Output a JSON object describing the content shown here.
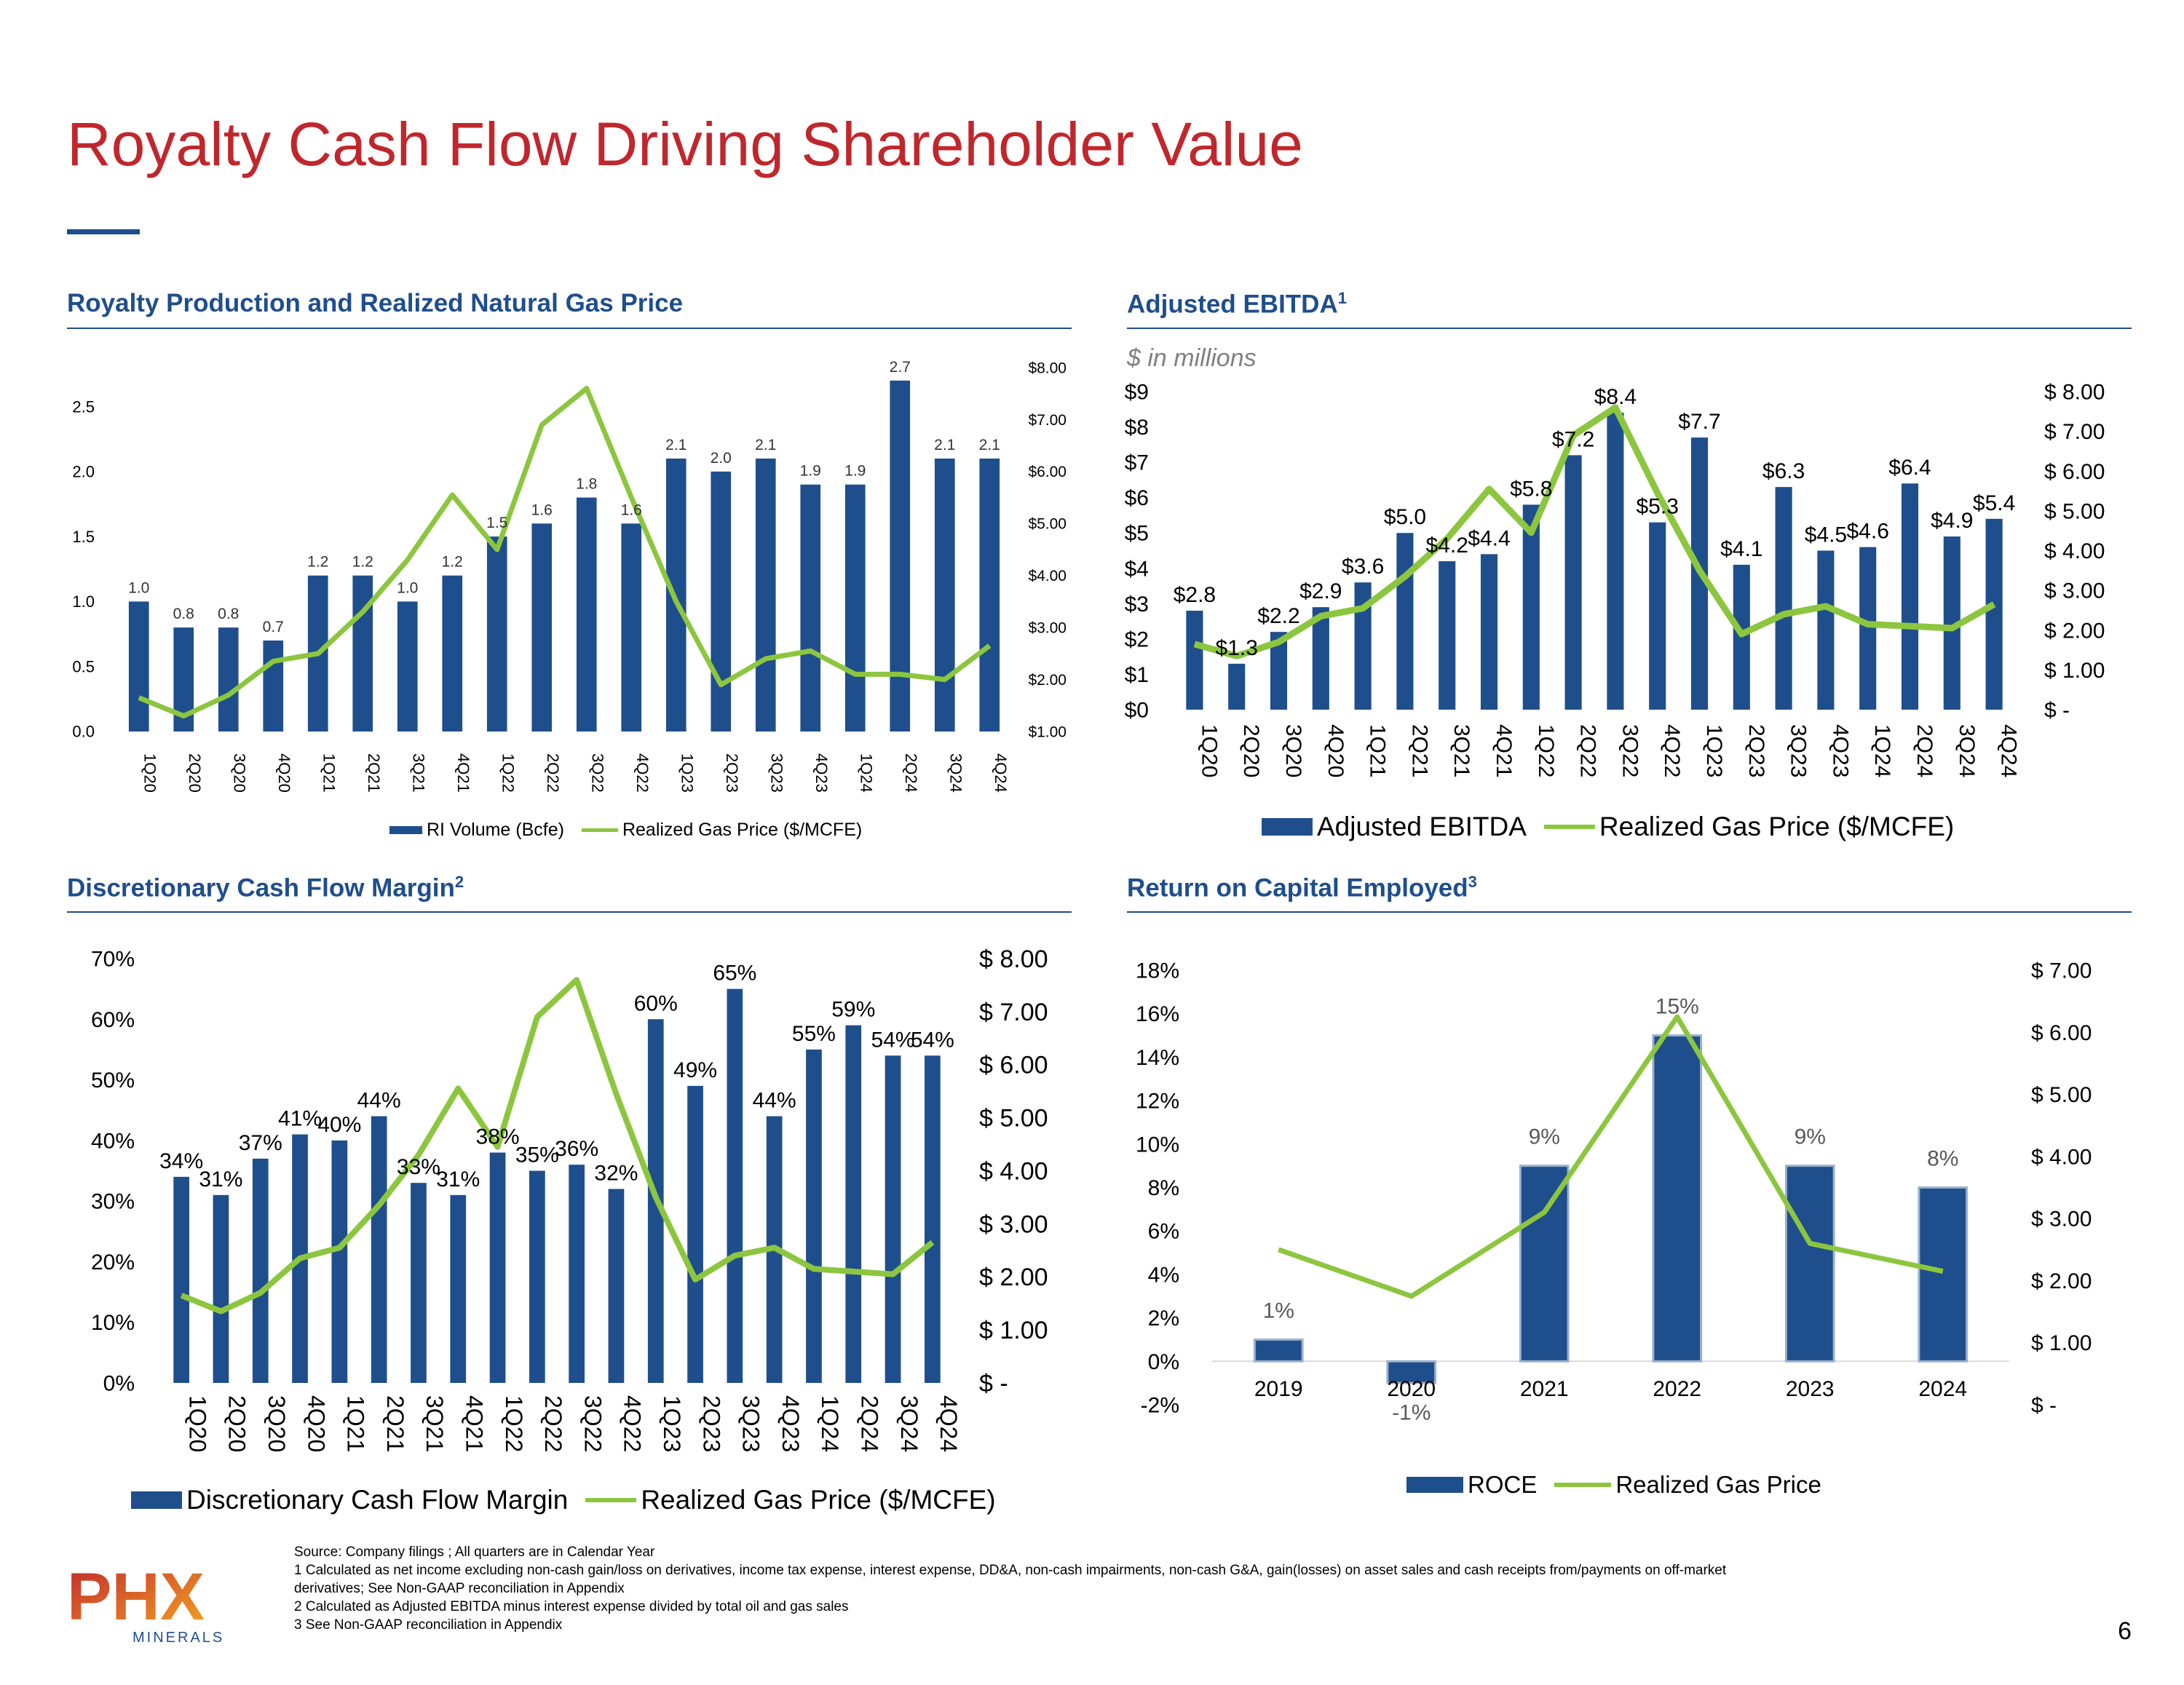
{
  "page": {
    "title": "Royalty Cash Flow Driving Shareholder Value",
    "page_number": "6",
    "colors": {
      "title": "#c0272d",
      "accent": "#1f4e8c",
      "bar": "#1f4e8c",
      "line": "#8cc63f"
    }
  },
  "charts_text": {
    "c1": {
      "title": "Royalty Production and Realized Natural Gas Price",
      "legend_bar": "RI Volume (Bcfe)",
      "legend_line": "Realized Gas Price ($/MCFE)"
    },
    "c2": {
      "title": "Adjusted EBITDA",
      "sup": "1",
      "subtitle": "$ in millions",
      "legend_bar": "Adjusted EBITDA",
      "legend_line": "Realized Gas Price ($/MCFE)"
    },
    "c3": {
      "title": "Discretionary Cash Flow Margin",
      "sup": "2",
      "legend_bar": "Discretionary Cash Flow Margin",
      "legend_line": "Realized Gas Price ($/MCFE)"
    },
    "c4": {
      "title": "Return on Capital Employed",
      "sup": "3",
      "legend_bar": "ROCE",
      "legend_line": "Realized Gas Price"
    }
  },
  "chart_data": [
    {
      "id": "c1",
      "type": "bar",
      "title": "Royalty Production and Realized Natural Gas Price",
      "categories": [
        "1Q20",
        "2Q20",
        "3Q20",
        "4Q20",
        "1Q21",
        "2Q21",
        "3Q21",
        "4Q21",
        "1Q22",
        "2Q22",
        "3Q22",
        "4Q22",
        "1Q23",
        "2Q23",
        "3Q23",
        "4Q23",
        "1Q24",
        "2Q24",
        "3Q24",
        "4Q24"
      ],
      "series": [
        {
          "name": "RI Volume (Bcfe)",
          "type": "bar",
          "axis": "left",
          "values": [
            1.0,
            0.8,
            0.8,
            0.7,
            1.2,
            1.2,
            1.0,
            1.2,
            1.5,
            1.6,
            1.8,
            1.6,
            2.1,
            2.0,
            2.1,
            1.9,
            1.9,
            2.7,
            2.1,
            2.1
          ],
          "labels": [
            "1.0",
            "0.8",
            "0.8",
            "0.7",
            "1.2",
            "1.2",
            "1.0",
            "1.2",
            "1.5",
            "1.6",
            "1.8",
            "1.6",
            "2.1",
            "2.0",
            "2.1",
            "1.9",
            "1.9",
            "2.7",
            "2.1",
            "2.1"
          ]
        },
        {
          "name": "Realized Gas Price ($/MCFE)",
          "type": "line",
          "axis": "right",
          "values": [
            1.65,
            1.3,
            1.7,
            2.35,
            2.5,
            3.3,
            4.3,
            5.55,
            4.5,
            6.9,
            7.6,
            5.5,
            3.5,
            1.9,
            2.4,
            2.55,
            2.1,
            2.1,
            2.0,
            2.65
          ]
        }
      ],
      "y_left": {
        "min": 0,
        "max": 2.8,
        "ticks": [
          0.0,
          0.5,
          1.0,
          1.5,
          2.0,
          2.5
        ],
        "tick_labels": [
          "0.0",
          "0.5",
          "1.0",
          "1.5",
          "2.0",
          "2.5"
        ]
      },
      "y_right": {
        "min": 1,
        "max": 8,
        "ticks": [
          1,
          2,
          3,
          4,
          5,
          6,
          7,
          8
        ],
        "tick_labels": [
          "$1.00",
          "$2.00",
          "$3.00",
          "$4.00",
          "$5.00",
          "$6.00",
          "$7.00",
          "$8.00"
        ]
      }
    },
    {
      "id": "c2",
      "type": "bar",
      "title": "Adjusted EBITDA",
      "categories": [
        "1Q20",
        "2Q20",
        "3Q20",
        "4Q20",
        "1Q21",
        "2Q21",
        "3Q21",
        "4Q21",
        "1Q22",
        "2Q22",
        "3Q22",
        "4Q22",
        "1Q23",
        "2Q23",
        "3Q23",
        "4Q23",
        "1Q24",
        "2Q24",
        "3Q24",
        "4Q24"
      ],
      "series": [
        {
          "name": "Adjusted EBITDA",
          "type": "bar",
          "axis": "left",
          "values": [
            2.8,
            1.3,
            2.2,
            2.9,
            3.6,
            5.0,
            4.2,
            4.4,
            5.8,
            7.2,
            8.4,
            5.3,
            7.7,
            4.1,
            6.3,
            4.5,
            4.6,
            6.4,
            4.9,
            5.4
          ],
          "labels": [
            "$2.8",
            "$1.3",
            "$2.2",
            "$2.9",
            "$3.6",
            "$5.0",
            "$4.2",
            "$4.4",
            "$5.8",
            "$7.2",
            "$8.4",
            "$5.3",
            "$7.7",
            "$4.1",
            "$6.3",
            "$4.5",
            "$4.6",
            "$6.4",
            "$4.9",
            "$5.4"
          ]
        },
        {
          "name": "Realized Gas Price ($/MCFE)",
          "type": "line",
          "axis": "right",
          "values": [
            1.65,
            1.35,
            1.7,
            2.35,
            2.55,
            3.35,
            4.3,
            5.55,
            4.45,
            6.9,
            7.6,
            5.45,
            3.5,
            1.9,
            2.4,
            2.6,
            2.15,
            2.1,
            2.05,
            2.65
          ]
        }
      ],
      "y_left": {
        "min": 0,
        "max": 9,
        "ticks": [
          0,
          1,
          2,
          3,
          4,
          5,
          6,
          7,
          8,
          9
        ],
        "tick_labels": [
          "$0",
          "$1",
          "$2",
          "$3",
          "$4",
          "$5",
          "$6",
          "$7",
          "$8",
          "$9"
        ]
      },
      "y_right": {
        "min": 0,
        "max": 8,
        "ticks": [
          0,
          1,
          2,
          3,
          4,
          5,
          6,
          7,
          8
        ],
        "tick_labels": [
          "$ -",
          "$ 1.00",
          "$ 2.00",
          "$ 3.00",
          "$ 4.00",
          "$ 5.00",
          "$ 6.00",
          "$ 7.00",
          "$ 8.00"
        ]
      }
    },
    {
      "id": "c3",
      "type": "bar",
      "title": "Discretionary Cash Flow Margin",
      "categories": [
        "1Q20",
        "2Q20",
        "3Q20",
        "4Q20",
        "1Q21",
        "2Q21",
        "3Q21",
        "4Q21",
        "1Q22",
        "2Q22",
        "3Q22",
        "4Q22",
        "1Q23",
        "2Q23",
        "3Q23",
        "4Q23",
        "1Q24",
        "2Q24",
        "3Q24",
        "4Q24"
      ],
      "series": [
        {
          "name": "Discretionary Cash Flow Margin",
          "type": "bar",
          "axis": "left",
          "values": [
            34,
            31,
            37,
            41,
            40,
            44,
            33,
            31,
            38,
            35,
            36,
            32,
            60,
            49,
            65,
            44,
            55,
            59,
            54,
            54
          ],
          "labels": [
            "34%",
            "31%",
            "37%",
            "41%",
            "40%",
            "44%",
            "33%",
            "31%",
            "38%",
            "35%",
            "36%",
            "32%",
            "60%",
            "49%",
            "65%",
            "44%",
            "55%",
            "59%",
            "54%",
            "54%"
          ]
        },
        {
          "name": "Realized Gas Price ($/MCFE)",
          "type": "line",
          "axis": "right",
          "values": [
            1.65,
            1.35,
            1.7,
            2.35,
            2.55,
            3.35,
            4.3,
            5.55,
            4.45,
            6.9,
            7.6,
            5.45,
            3.5,
            1.95,
            2.4,
            2.55,
            2.15,
            2.1,
            2.05,
            2.65
          ]
        }
      ],
      "y_left": {
        "min": 0,
        "max": 70,
        "ticks": [
          0,
          10,
          20,
          30,
          40,
          50,
          60,
          70
        ],
        "tick_labels": [
          "0%",
          "10%",
          "20%",
          "30%",
          "40%",
          "50%",
          "60%",
          "70%"
        ]
      },
      "y_right": {
        "min": 0,
        "max": 8,
        "ticks": [
          0,
          1,
          2,
          3,
          4,
          5,
          6,
          7,
          8
        ],
        "tick_labels": [
          "$ -",
          "$ 1.00",
          "$ 2.00",
          "$ 3.00",
          "$ 4.00",
          "$ 5.00",
          "$ 6.00",
          "$ 7.00",
          "$ 8.00"
        ]
      }
    },
    {
      "id": "c4",
      "type": "bar",
      "title": "Return on Capital Employed",
      "categories": [
        "2019",
        "2020",
        "2021",
        "2022",
        "2023",
        "2024"
      ],
      "series": [
        {
          "name": "ROCE",
          "type": "bar",
          "axis": "left",
          "values": [
            1,
            -1,
            9,
            15,
            9,
            8
          ],
          "labels": [
            "1%",
            "-1%",
            "9%",
            "15%",
            "9%",
            "8%"
          ]
        },
        {
          "name": "Realized Gas Price",
          "type": "line",
          "axis": "right",
          "values": [
            2.5,
            1.75,
            3.1,
            6.25,
            2.6,
            2.15
          ]
        }
      ],
      "y_left": {
        "min": -2,
        "max": 18,
        "ticks": [
          -2,
          0,
          2,
          4,
          6,
          8,
          10,
          12,
          14,
          16,
          18
        ],
        "tick_labels": [
          "-2%",
          "0%",
          "2%",
          "4%",
          "6%",
          "8%",
          "10%",
          "12%",
          "14%",
          "16%",
          "18%"
        ]
      },
      "y_right": {
        "min": 0,
        "max": 7,
        "ticks": [
          0,
          1,
          2,
          3,
          4,
          5,
          6,
          7
        ],
        "tick_labels": [
          "$ -",
          "$ 1.00",
          "$ 2.00",
          "$ 3.00",
          "$ 4.00",
          "$ 5.00",
          "$ 6.00",
          "$ 7.00"
        ]
      }
    }
  ],
  "footnotes": [
    "Source: Company filings ; All quarters are in Calendar Year",
    "1 Calculated as net income excluding non-cash gain/loss on derivatives, income tax expense, interest expense, DD&A, non-cash impairments, non-cash G&A, gain(losses) on asset sales and cash receipts from/payments on off-market",
    "derivatives; See Non-GAAP reconciliation in Appendix",
    "2 Calculated as Adjusted EBITDA minus interest expense divided by total oil and gas sales",
    "3 See Non-GAAP reconciliation in Appendix"
  ],
  "logo": {
    "text": "PHX",
    "subtext": "MINERALS"
  }
}
